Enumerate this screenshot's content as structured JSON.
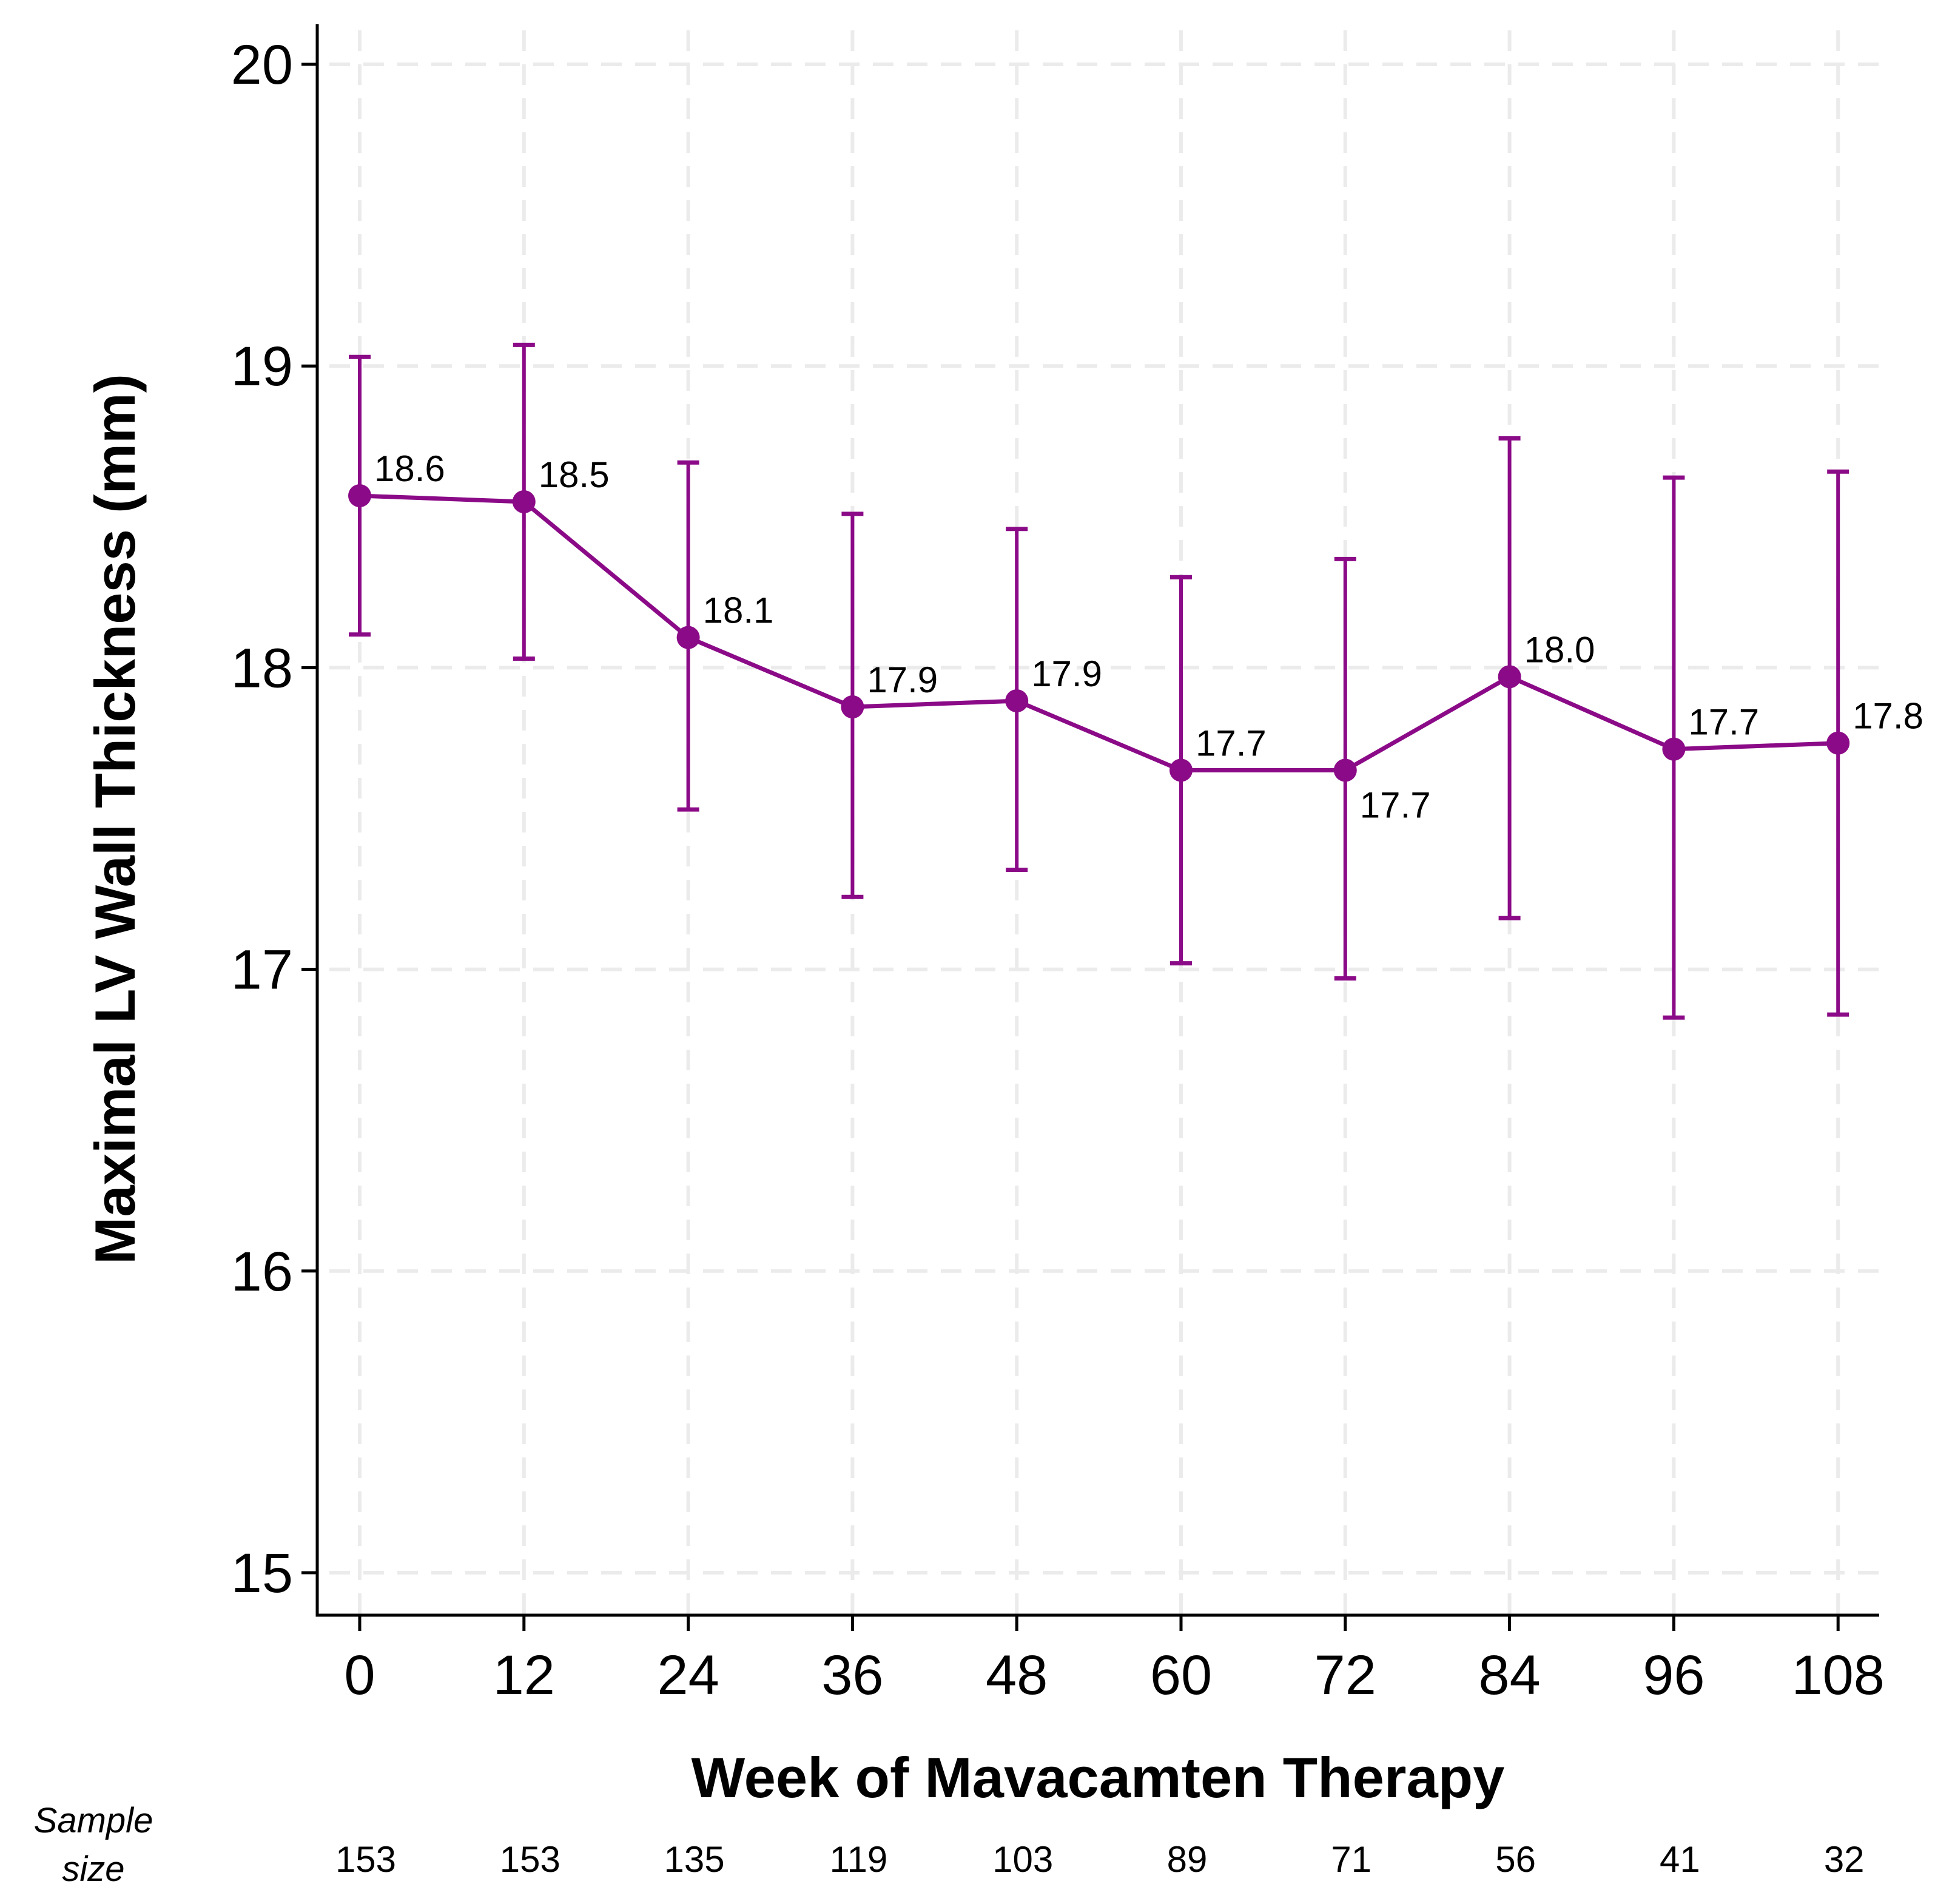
{
  "chart_data": {
    "type": "line",
    "title": "",
    "xlabel": "Week of Mavacamten Therapy",
    "ylabel": "Maximal LV Wall Thickness (mm)",
    "ylim": [
      14.85,
      20.15
    ],
    "xlim": [
      -3,
      111
    ],
    "x_ticks": [
      "0",
      "12",
      "24",
      "36",
      "48",
      "60",
      "72",
      "84",
      "96",
      "108"
    ],
    "y_ticks": [
      "15",
      "16",
      "17",
      "18",
      "19",
      "20"
    ],
    "grid": true,
    "series": [
      {
        "name": "Maximal LV Wall Thickness",
        "color": "#8b0a87",
        "x": [
          0,
          12,
          24,
          36,
          48,
          60,
          72,
          84,
          96,
          108
        ],
        "values": [
          18.57,
          18.55,
          18.1,
          17.87,
          17.89,
          17.66,
          17.66,
          17.97,
          17.73,
          17.75
        ],
        "lower": [
          18.11,
          18.03,
          17.53,
          17.24,
          17.33,
          17.02,
          16.97,
          17.17,
          16.84,
          16.85
        ],
        "upper": [
          19.03,
          19.07,
          18.68,
          18.51,
          18.46,
          18.3,
          18.36,
          18.76,
          18.63,
          18.65
        ],
        "labels": [
          "18.6",
          "18.5",
          "18.1",
          "17.9",
          "17.9",
          "17.7",
          "17.7",
          "18.0",
          "17.7",
          "17.8"
        ]
      }
    ],
    "sample_size": {
      "header_line1": "Sample",
      "header_line2": "size",
      "values": [
        "153",
        "153",
        "135",
        "119",
        "103",
        "89",
        "71",
        "56",
        "41",
        "32"
      ]
    }
  }
}
